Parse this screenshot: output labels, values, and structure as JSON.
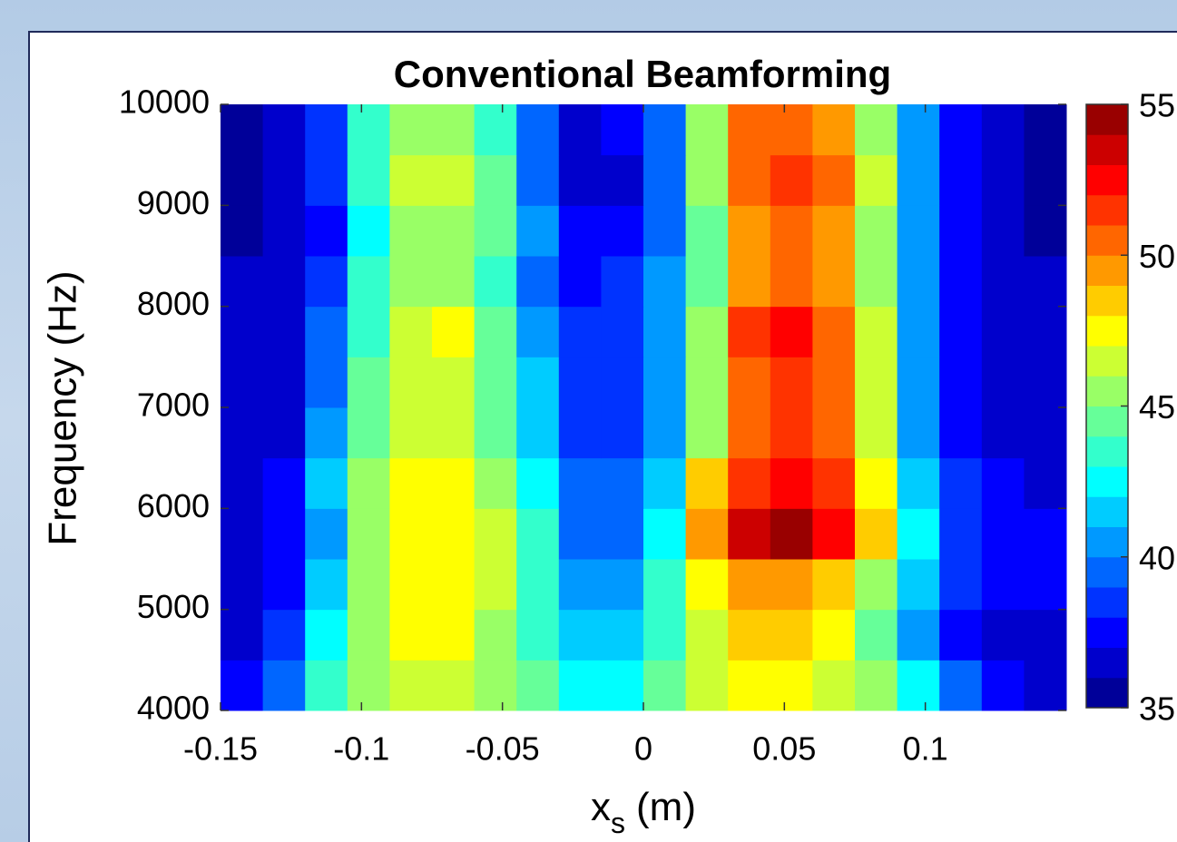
{
  "chart_data": {
    "type": "heatmap",
    "title": "Conventional Beamforming",
    "xlabel": {
      "base": "x",
      "subscript": "s",
      "rest": "(m)"
    },
    "ylabel": "Frequency (Hz)",
    "x": [
      -0.1425,
      -0.1275,
      -0.1125,
      -0.0975,
      -0.0825,
      -0.0675,
      -0.0525,
      -0.0375,
      -0.0225,
      -0.0075,
      0.0075,
      0.0225,
      0.0375,
      0.0525,
      0.0675,
      0.0825,
      0.0975,
      0.1125,
      0.1275,
      0.1425
    ],
    "y": [
      4250,
      4750,
      5250,
      5750,
      6250,
      6750,
      7250,
      7750,
      8250,
      8750,
      9250,
      9750
    ],
    "z": [
      [
        37,
        39,
        43,
        45,
        46,
        46,
        45,
        44,
        42,
        42,
        44,
        46,
        47,
        47,
        46,
        45,
        42,
        39,
        37,
        36
      ],
      [
        36,
        38,
        42,
        45,
        47,
        47,
        45,
        43,
        41,
        41,
        43,
        46,
        48,
        48,
        47,
        44,
        40,
        37,
        36,
        36
      ],
      [
        36,
        37,
        41,
        45,
        47,
        47,
        46,
        43,
        40,
        40,
        43,
        47,
        49,
        49,
        48,
        45,
        41,
        38,
        37,
        37
      ],
      [
        36,
        37,
        40,
        45,
        47,
        47,
        46,
        43,
        39,
        39,
        42,
        49,
        53,
        54,
        52,
        48,
        42,
        38,
        37,
        37
      ],
      [
        36,
        37,
        41,
        45,
        47,
        47,
        45,
        42,
        39,
        39,
        41,
        48,
        51,
        52,
        51,
        47,
        41,
        38,
        37,
        36
      ],
      [
        36,
        36,
        40,
        44,
        46,
        46,
        44,
        41,
        38,
        38,
        40,
        45,
        50,
        51,
        50,
        46,
        40,
        37,
        36,
        36
      ],
      [
        36,
        36,
        39,
        44,
        46,
        46,
        44,
        41,
        38,
        38,
        40,
        45,
        50,
        51,
        50,
        46,
        40,
        37,
        36,
        36
      ],
      [
        36,
        36,
        39,
        43,
        46,
        47,
        44,
        40,
        38,
        38,
        40,
        45,
        51,
        52,
        50,
        46,
        40,
        37,
        36,
        36
      ],
      [
        36,
        36,
        38,
        43,
        45,
        45,
        43,
        39,
        37,
        38,
        40,
        44,
        49,
        50,
        49,
        45,
        40,
        37,
        36,
        36
      ],
      [
        35,
        36,
        37,
        42,
        45,
        45,
        44,
        40,
        37,
        37,
        39,
        44,
        49,
        50,
        49,
        45,
        40,
        37,
        36,
        35
      ],
      [
        35,
        36,
        38,
        43,
        46,
        46,
        44,
        39,
        36,
        36,
        39,
        45,
        50,
        51,
        50,
        46,
        40,
        37,
        36,
        35
      ],
      [
        35,
        36,
        38,
        43,
        45,
        45,
        43,
        39,
        36,
        37,
        39,
        45,
        50,
        50,
        49,
        45,
        40,
        37,
        36,
        35
      ]
    ],
    "xlim": [
      -0.15,
      0.15
    ],
    "ylim": [
      4000,
      10000
    ],
    "xticks": [
      -0.15,
      -0.1,
      -0.05,
      0,
      0.05,
      0.1
    ],
    "yticks": [
      4000,
      5000,
      6000,
      7000,
      8000,
      9000,
      10000
    ],
    "colormap": "jet",
    "clim": [
      35,
      55
    ],
    "cticks": [
      35,
      40,
      45,
      50,
      55
    ],
    "levels": 20
  }
}
